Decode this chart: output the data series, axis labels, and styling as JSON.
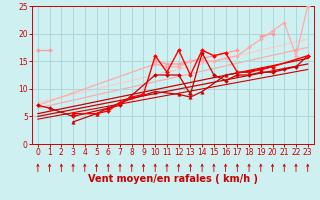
{
  "xlabel": "Vent moyen/en rafales ( km/h )",
  "xlim": [
    -0.5,
    23.5
  ],
  "ylim": [
    0,
    25
  ],
  "xticks": [
    0,
    1,
    2,
    3,
    4,
    5,
    6,
    7,
    8,
    9,
    10,
    11,
    12,
    13,
    14,
    15,
    16,
    17,
    18,
    19,
    20,
    21,
    22,
    23
  ],
  "yticks": [
    0,
    5,
    10,
    15,
    20,
    25
  ],
  "bg_color": "#cef0f0",
  "grid_color": "#aad8d8",
  "tick_fontsize": 5.5,
  "label_fontsize": 7,
  "label_color": "#cc0000",
  "lines": [
    {
      "segments": [
        {
          "x": [
            0,
            1
          ],
          "y": [
            17.0,
            17.0
          ]
        },
        {
          "x": [
            10,
            11,
            12,
            13,
            14,
            15,
            16,
            17
          ],
          "y": [
            15.0,
            14.5,
            14.5,
            15.0,
            15.5,
            16.0,
            16.5,
            17.0
          ]
        },
        {
          "x": [
            19,
            20
          ],
          "y": [
            19.5,
            20.0
          ]
        },
        {
          "x": [
            22
          ],
          "y": [
            17.0
          ]
        }
      ],
      "color": "#ff9999",
      "marker": "D",
      "markersize": 2.0,
      "linewidth": 0.9,
      "zorder": 3
    },
    {
      "segments": [
        {
          "x": [
            0,
            10,
            11,
            12,
            13,
            14,
            15,
            16,
            17,
            18,
            19,
            20,
            21,
            22,
            23
          ],
          "y": [
            7.0,
            14.5,
            14.0,
            14.0,
            15.0,
            15.0,
            15.0,
            15.5,
            16.0,
            17.5,
            19.0,
            20.5,
            22.0,
            16.0,
            25.0
          ]
        }
      ],
      "color": "#ffaaaa",
      "marker": "D",
      "markersize": 2.0,
      "linewidth": 0.9,
      "zorder": 3
    },
    {
      "segments": [
        {
          "x": [
            3,
            5,
            6,
            7,
            10,
            12,
            13,
            14,
            16,
            19,
            20
          ],
          "y": [
            4.0,
            5.5,
            6.5,
            7.5,
            9.5,
            9.0,
            8.5,
            9.5,
            12.5,
            13.5,
            14.0
          ]
        }
      ],
      "color": "#cc0000",
      "marker": "^",
      "markersize": 2.5,
      "linewidth": 0.9,
      "zorder": 5
    },
    {
      "segments": [
        {
          "x": [
            0,
            1,
            3,
            6,
            7,
            10,
            11,
            12,
            13,
            14,
            15,
            16,
            17,
            18,
            19,
            20,
            21,
            22,
            23
          ],
          "y": [
            7.0,
            6.5,
            5.0,
            6.5,
            7.0,
            12.5,
            12.5,
            12.5,
            9.0,
            16.5,
            12.5,
            11.5,
            12.5,
            12.5,
            13.0,
            13.0,
            13.5,
            14.0,
            16.0
          ]
        }
      ],
      "color": "#cc0000",
      "marker": "D",
      "markersize": 2.0,
      "linewidth": 0.9,
      "zorder": 5
    },
    {
      "segments": [
        {
          "x": [
            3,
            5,
            6,
            7,
            8,
            9,
            10,
            11,
            12,
            13,
            14,
            15,
            16,
            17,
            18,
            19,
            20,
            23
          ],
          "y": [
            5.5,
            5.5,
            6.0,
            7.5,
            8.5,
            9.0,
            16.0,
            13.0,
            17.0,
            12.5,
            17.0,
            16.0,
            16.5,
            13.0,
            13.0,
            13.5,
            14.0,
            16.0
          ]
        }
      ],
      "color": "#ff0000",
      "marker": "D",
      "markersize": 2.0,
      "linewidth": 1.0,
      "zorder": 6
    }
  ],
  "reg_lines": [
    {
      "x": [
        0,
        23
      ],
      "y": [
        7.5,
        19.0
      ],
      "color": "#ffcccc",
      "linewidth": 0.9,
      "zorder": 1
    },
    {
      "x": [
        0,
        23
      ],
      "y": [
        6.5,
        17.5
      ],
      "color": "#ffaaaa",
      "linewidth": 0.9,
      "zorder": 1
    },
    {
      "x": [
        0,
        23
      ],
      "y": [
        5.5,
        15.5
      ],
      "color": "#cc0000",
      "linewidth": 0.9,
      "zorder": 2
    },
    {
      "x": [
        0,
        23
      ],
      "y": [
        5.0,
        14.5
      ],
      "color": "#cc0000",
      "linewidth": 0.9,
      "zorder": 2
    },
    {
      "x": [
        0,
        23
      ],
      "y": [
        4.5,
        13.5
      ],
      "color": "#cc0000",
      "linewidth": 0.8,
      "zorder": 2
    }
  ],
  "wind_symbols_x": [
    0,
    1,
    2,
    3,
    4,
    5,
    6,
    7,
    8,
    9,
    10,
    11,
    12,
    13,
    14,
    15,
    16,
    17,
    18,
    19,
    20,
    21,
    22,
    23
  ]
}
